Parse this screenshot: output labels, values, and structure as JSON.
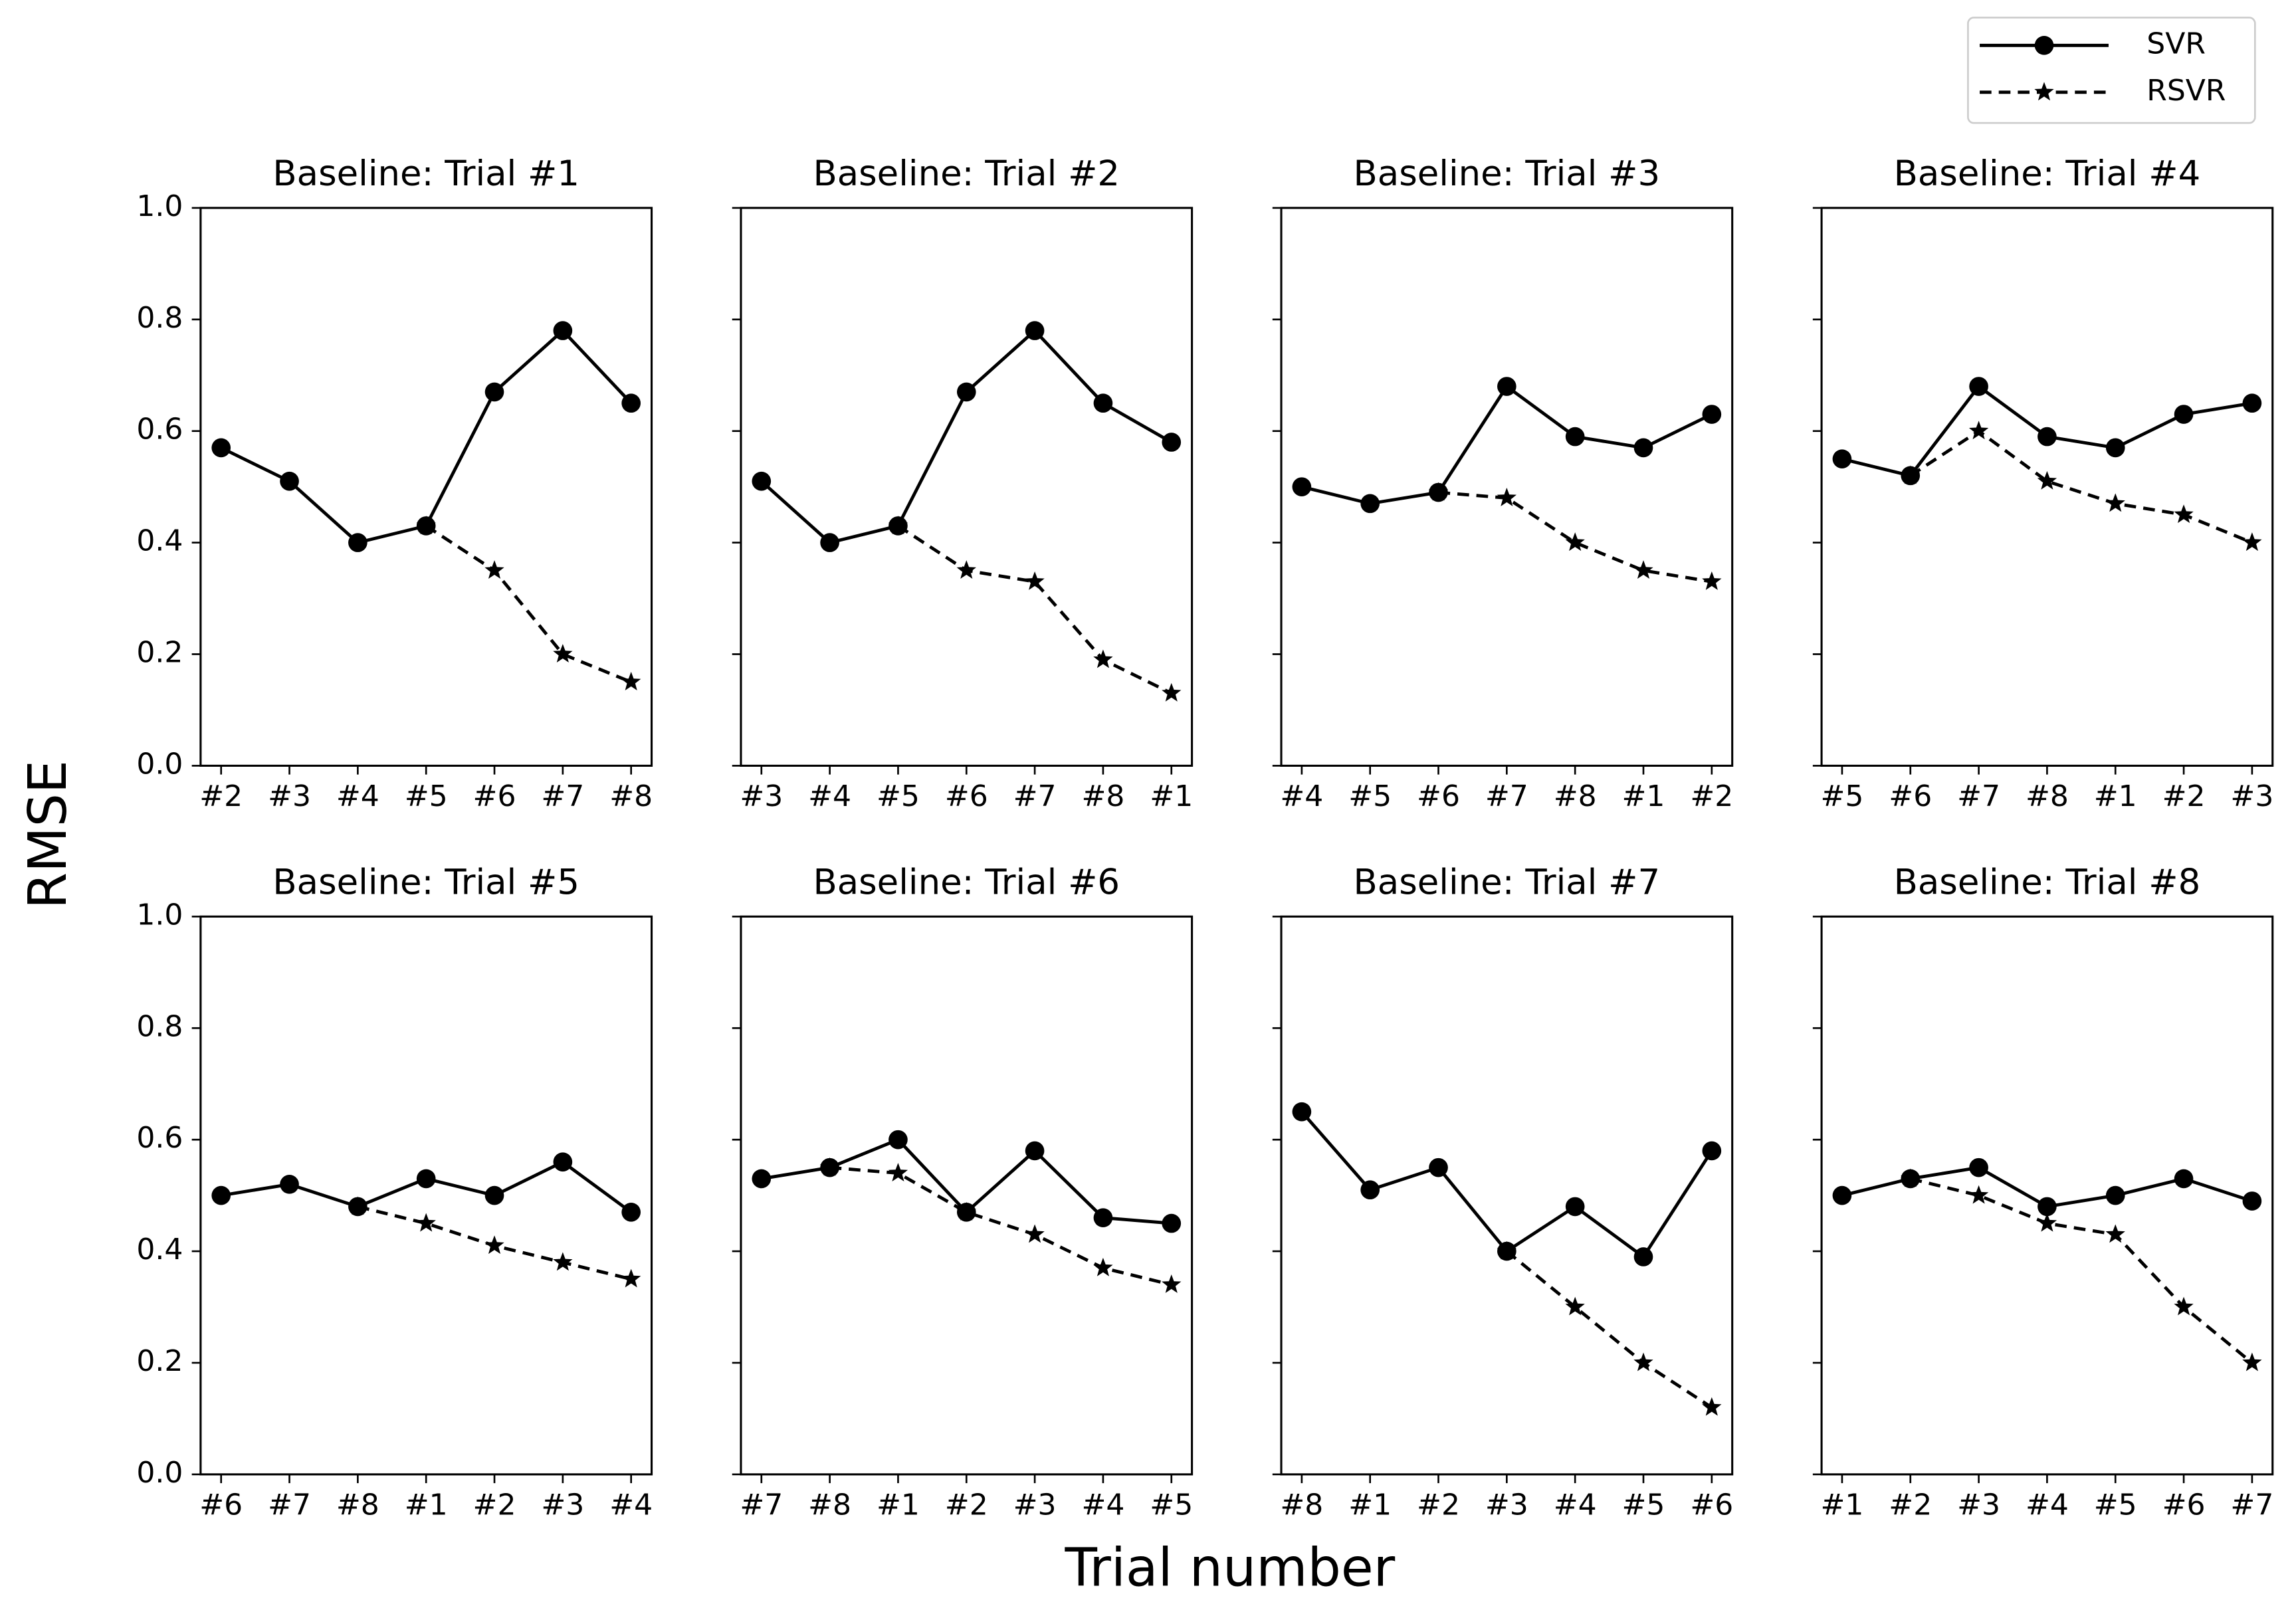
{
  "xlabel": "Trial number",
  "ylabel": "RMSE",
  "legend": "upper right",
  "chart_data": [
    {
      "type": "line",
      "title": "Baseline: Trial #1",
      "categories": [
        "#2",
        "#3",
        "#4",
        "#5",
        "#6",
        "#7",
        "#8"
      ],
      "series": [
        {
          "name": "SVR",
          "color": "#000000",
          "linestyle": "solid",
          "marker": "circle",
          "values": [
            0.57,
            0.51,
            0.4,
            0.43,
            0.67,
            0.78,
            0.65
          ]
        },
        {
          "name": "RSVR",
          "color": "#000000",
          "linestyle": "dashed",
          "marker": "star",
          "values": [
            null,
            null,
            null,
            0.43,
            0.35,
            0.2,
            0.15
          ]
        }
      ],
      "ylim": [
        0,
        1
      ],
      "yticks": [
        {
          "value": 0,
          "label": "0.0"
        },
        0.2,
        0.4,
        0.6,
        0.8,
        {
          "value": 1,
          "label": "1.0"
        }
      ]
    },
    {
      "type": "line",
      "title": "Baseline: Trial #2",
      "categories": [
        "#3",
        "#4",
        "#5",
        "#6",
        "#7",
        "#8",
        "#1"
      ],
      "series": [
        {
          "name": "SVR",
          "color": "#000000",
          "linestyle": "solid",
          "marker": "circle",
          "values": [
            0.51,
            0.4,
            0.43,
            0.67,
            0.78,
            0.65,
            0.58
          ]
        },
        {
          "name": "RSVR",
          "color": "#000000",
          "linestyle": "dashed",
          "marker": "star",
          "values": [
            null,
            null,
            0.43,
            0.35,
            0.33,
            0.19,
            0.13
          ]
        }
      ],
      "ylim": [
        0,
        1
      ],
      "yticks": [
        {
          "value": 0,
          "label": "0.0"
        },
        0.2,
        0.4,
        0.6,
        0.8,
        {
          "value": 1,
          "label": "1.0"
        }
      ]
    },
    {
      "type": "line",
      "title": "Baseline: Trial #3",
      "categories": [
        "#4",
        "#5",
        "#6",
        "#7",
        "#8",
        "#1",
        "#2"
      ],
      "series": [
        {
          "name": "SVR",
          "color": "#000000",
          "linestyle": "solid",
          "marker": "circle",
          "values": [
            0.5,
            0.47,
            0.49,
            0.68,
            0.59,
            0.57,
            0.63
          ]
        },
        {
          "name": "RSVR",
          "color": "#000000",
          "linestyle": "dashed",
          "marker": "star",
          "values": [
            null,
            null,
            0.49,
            0.48,
            0.4,
            0.35,
            0.33
          ]
        }
      ],
      "ylim": [
        0,
        1
      ],
      "yticks": [
        {
          "value": 0,
          "label": "0.0"
        },
        0.2,
        0.4,
        0.6,
        0.8,
        {
          "value": 1,
          "label": "1.0"
        }
      ]
    },
    {
      "type": "line",
      "title": "Baseline: Trial #4",
      "categories": [
        "#5",
        "#6",
        "#7",
        "#8",
        "#1",
        "#2",
        "#3"
      ],
      "series": [
        {
          "name": "SVR",
          "color": "#000000",
          "linestyle": "solid",
          "marker": "circle",
          "values": [
            0.55,
            0.52,
            0.68,
            0.59,
            0.57,
            0.63,
            0.65
          ]
        },
        {
          "name": "RSVR",
          "color": "#000000",
          "linestyle": "dashed",
          "marker": "star",
          "values": [
            null,
            0.52,
            0.6,
            0.51,
            0.47,
            0.45,
            0.4
          ]
        }
      ],
      "ylim": [
        0,
        1
      ],
      "yticks": [
        {
          "value": 0,
          "label": "0.0"
        },
        0.2,
        0.4,
        0.6,
        0.8,
        {
          "value": 1,
          "label": "1.0"
        }
      ]
    },
    {
      "type": "line",
      "title": "Baseline: Trial #5",
      "categories": [
        "#6",
        "#7",
        "#8",
        "#1",
        "#2",
        "#3",
        "#4"
      ],
      "series": [
        {
          "name": "SVR",
          "color": "#000000",
          "linestyle": "solid",
          "marker": "circle",
          "values": [
            0.5,
            0.52,
            0.48,
            0.53,
            0.5,
            0.56,
            0.47
          ]
        },
        {
          "name": "RSVR",
          "color": "#000000",
          "linestyle": "dashed",
          "marker": "star",
          "values": [
            null,
            null,
            0.48,
            0.45,
            0.41,
            0.38,
            0.35
          ]
        }
      ],
      "ylim": [
        0,
        1
      ],
      "yticks": [
        {
          "value": 0,
          "label": "0.0"
        },
        0.2,
        0.4,
        0.6,
        0.8,
        {
          "value": 1,
          "label": "1.0"
        }
      ]
    },
    {
      "type": "line",
      "title": "Baseline: Trial #6",
      "categories": [
        "#7",
        "#8",
        "#1",
        "#2",
        "#3",
        "#4",
        "#5"
      ],
      "series": [
        {
          "name": "SVR",
          "color": "#000000",
          "linestyle": "solid",
          "marker": "circle",
          "values": [
            0.53,
            0.55,
            0.6,
            0.47,
            0.58,
            0.46,
            0.45
          ]
        },
        {
          "name": "RSVR",
          "color": "#000000",
          "linestyle": "dashed",
          "marker": "star",
          "values": [
            null,
            0.55,
            0.54,
            0.47,
            0.43,
            0.37,
            0.34
          ]
        }
      ],
      "ylim": [
        0,
        1
      ],
      "yticks": [
        {
          "value": 0,
          "label": "0.0"
        },
        0.2,
        0.4,
        0.6,
        0.8,
        {
          "value": 1,
          "label": "1.0"
        }
      ]
    },
    {
      "type": "line",
      "title": "Baseline: Trial #7",
      "categories": [
        "#8",
        "#1",
        "#2",
        "#3",
        "#4",
        "#5",
        "#6"
      ],
      "series": [
        {
          "name": "SVR",
          "color": "#000000",
          "linestyle": "solid",
          "marker": "circle",
          "values": [
            0.65,
            0.51,
            0.55,
            0.4,
            0.48,
            0.39,
            0.58
          ]
        },
        {
          "name": "RSVR",
          "color": "#000000",
          "linestyle": "dashed",
          "marker": "star",
          "values": [
            null,
            null,
            null,
            0.4,
            0.3,
            0.2,
            0.12
          ]
        }
      ],
      "ylim": [
        0,
        1
      ],
      "yticks": [
        {
          "value": 0,
          "label": "0.0"
        },
        0.2,
        0.4,
        0.6,
        0.8,
        {
          "value": 1,
          "label": "1.0"
        }
      ]
    },
    {
      "type": "line",
      "title": "Baseline: Trial #8",
      "categories": [
        "#1",
        "#2",
        "#3",
        "#4",
        "#5",
        "#6",
        "#7"
      ],
      "series": [
        {
          "name": "SVR",
          "color": "#000000",
          "linestyle": "solid",
          "marker": "circle",
          "values": [
            0.5,
            0.53,
            0.55,
            0.48,
            0.5,
            0.53,
            0.49
          ]
        },
        {
          "name": "RSVR",
          "color": "#000000",
          "linestyle": "dashed",
          "marker": "star",
          "values": [
            null,
            0.53,
            0.5,
            0.45,
            0.43,
            0.3,
            0.2
          ]
        }
      ],
      "ylim": [
        0,
        1
      ],
      "yticks": [
        {
          "value": 0,
          "label": "0.0"
        },
        0.2,
        0.4,
        0.6,
        0.8,
        {
          "value": 1,
          "label": "1.0"
        }
      ]
    }
  ]
}
